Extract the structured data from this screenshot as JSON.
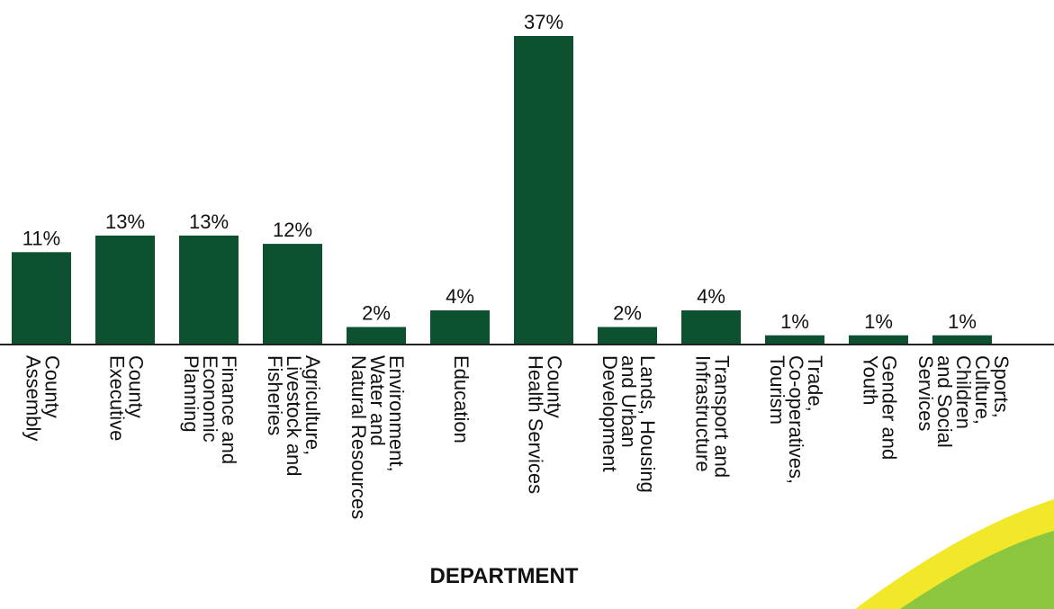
{
  "chart_data": {
    "type": "bar",
    "x_label": "DEPARTMENT",
    "categories": [
      "County\nAssembly",
      "County\nExecutive",
      "Finance and\nEconomic\nPlanning",
      "Agriculture,\nLivestock and\nFisheries",
      "Environment,\nWater and\nNatural Resources",
      "Education",
      "County\nHealth Services",
      "Lands, Housing\nand Urban\nDevelopment",
      "Transport and\nInfrastructure",
      "Trade,\nCo-operatives,\nTourism",
      "Gender and\nYouth",
      "Sports,\nCulture,\nChildren\nand Social\nServices"
    ],
    "values": [
      11,
      13,
      13,
      12,
      2,
      4,
      37,
      2,
      4,
      1,
      1,
      1
    ],
    "value_labels": [
      "11%",
      "13%",
      "13%",
      "12%",
      "2%",
      "4%",
      "37%",
      "2%",
      "4%",
      "1%",
      "1%",
      "1%"
    ],
    "color": "#0e5130"
  }
}
